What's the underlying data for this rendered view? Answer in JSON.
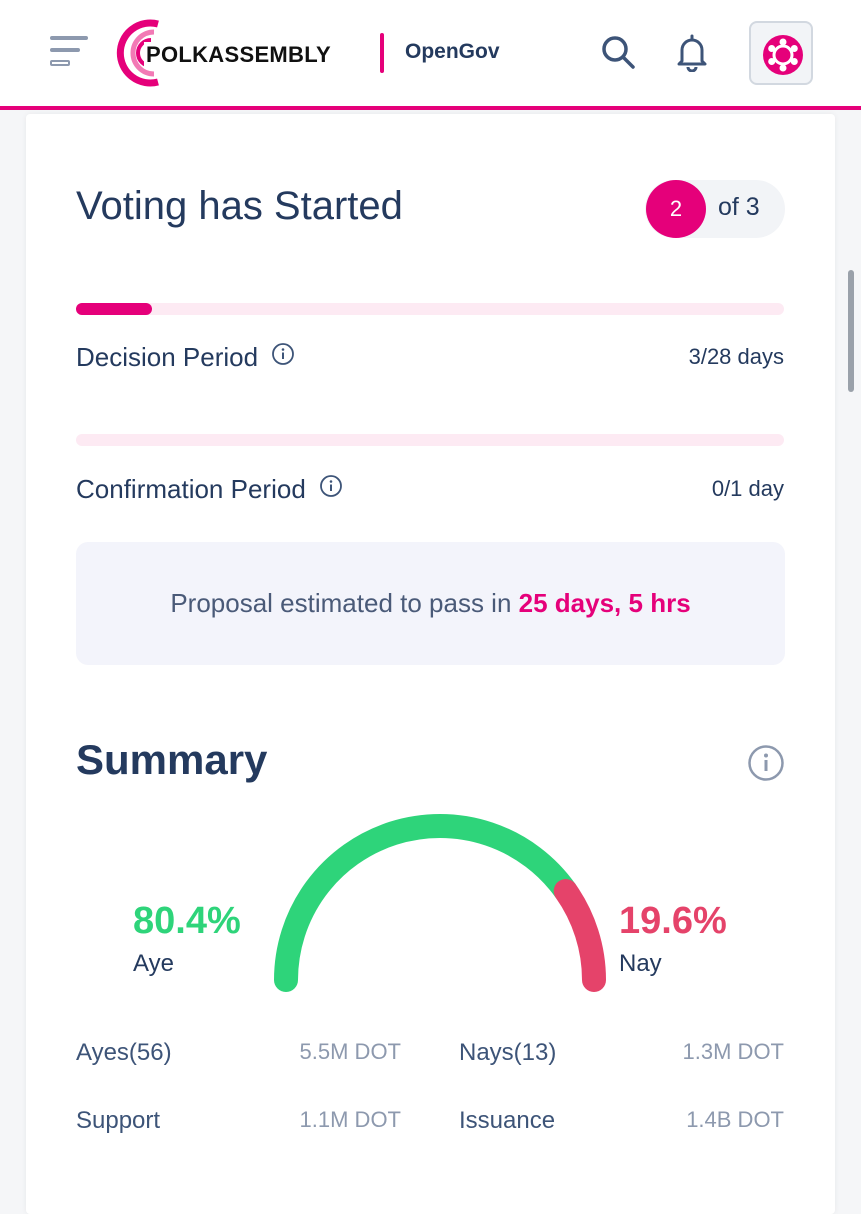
{
  "header": {
    "logo_text": "POLKASSEMBLY",
    "network": "OpenGov",
    "icons": [
      "menu-icon",
      "search-icon",
      "bell-icon",
      "polkadot-icon"
    ],
    "accent_color": "#e5007a"
  },
  "status": {
    "title": "Voting has Started",
    "step_current": "2",
    "step_total_label": "of 3"
  },
  "periods": {
    "decision": {
      "label": "Decision Period",
      "value": "3/28 days",
      "progress": 0.107
    },
    "confirmation": {
      "label": "Confirmation Period",
      "value": "0/1 day",
      "progress": 0
    }
  },
  "estimate": {
    "prefix": "Proposal estimated to pass in",
    "highlight": "25 days, 5 hrs"
  },
  "summary": {
    "title": "Summary",
    "aye_percent": "80.4%",
    "aye_label": "Aye",
    "nay_percent": "19.6%",
    "nay_label": "Nay",
    "aye_fraction": 0.804,
    "aye_color": "#2ed47a",
    "nay_color": "#e5436a",
    "stats": {
      "ayes_label": "Ayes(56)",
      "ayes_value": "5.5M DOT",
      "nays_label": "Nays(13)",
      "nays_value": "1.3M DOT",
      "support_label": "Support",
      "support_value": "1.1M DOT",
      "issuance_label": "Issuance",
      "issuance_value": "1.4B DOT"
    }
  }
}
